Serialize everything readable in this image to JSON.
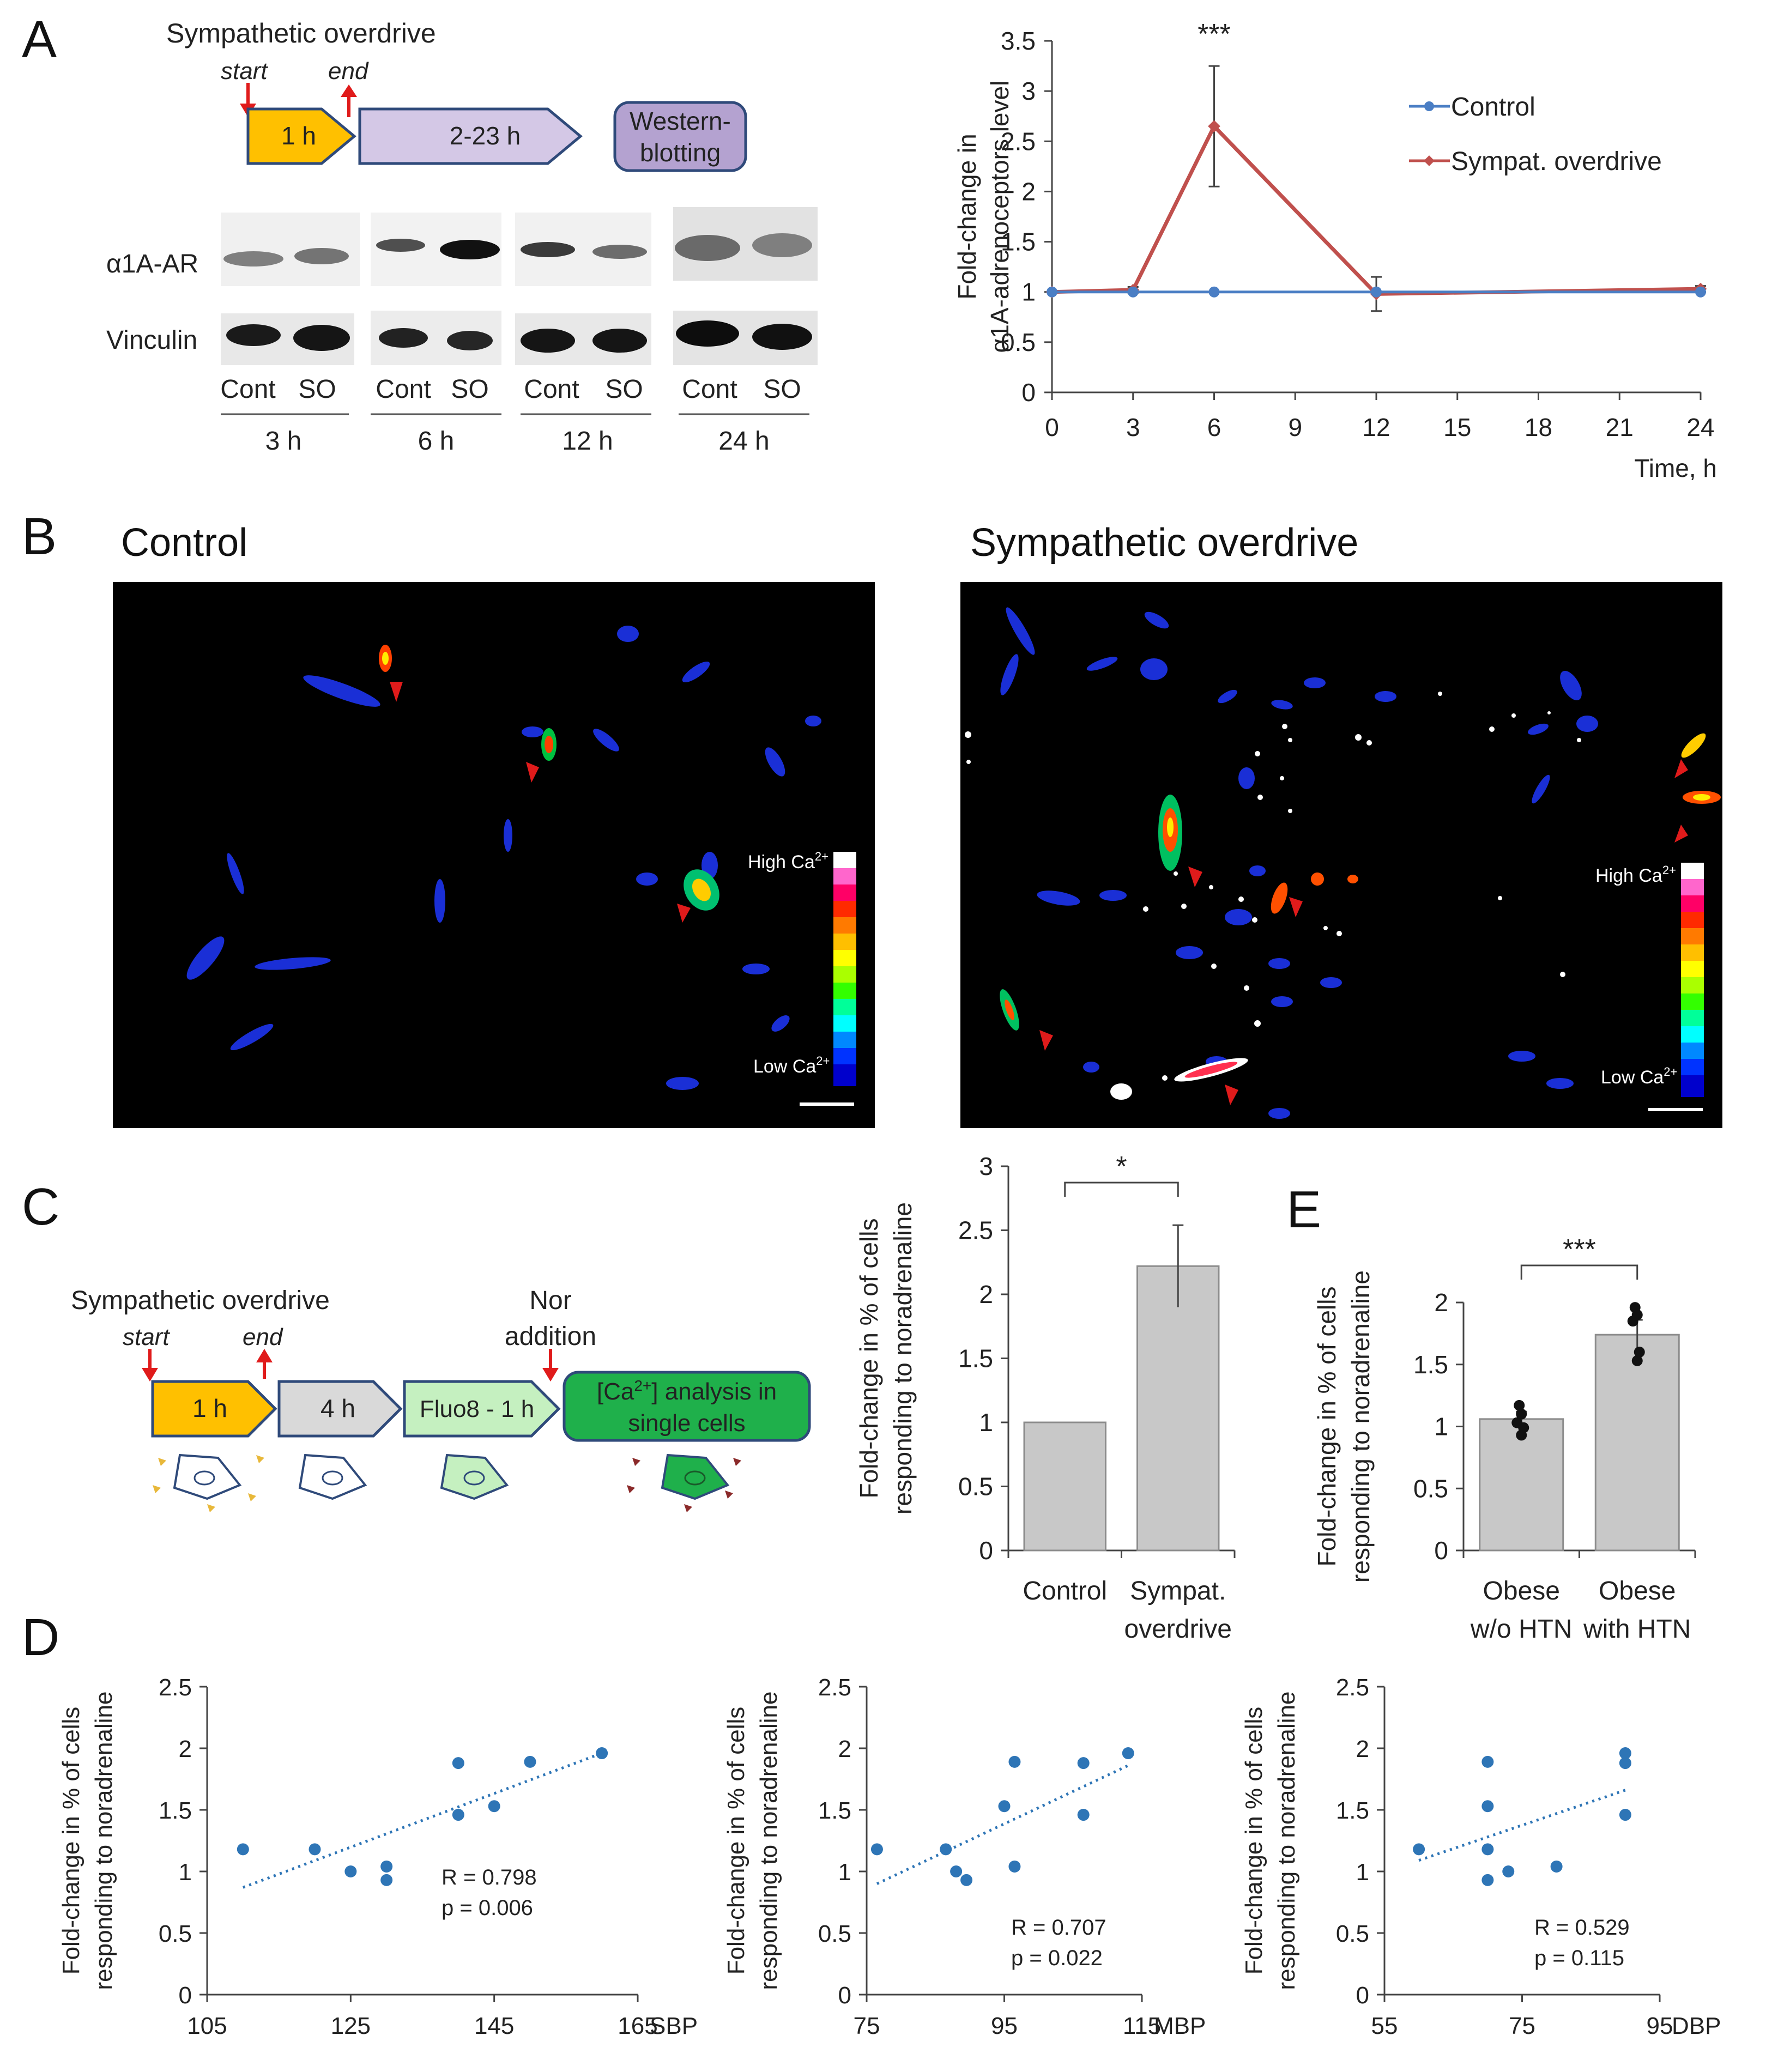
{
  "panel_labels": [
    "A",
    "B",
    "C",
    "D",
    "E"
  ],
  "colors": {
    "control": "#4a7ec4",
    "so": "#c0504d",
    "bar": "#c8c8c8",
    "bar_edge": "#8c8c8c",
    "dot_blue": "#2e75b6",
    "arrow_red": "#e01b1b",
    "step_orange": "#ffc000",
    "step_lavender": "#d4c8e6",
    "step_gray": "#d9d9d9",
    "step_lightgreen": "#c5f0c0",
    "step_green": "#1fb04b"
  },
  "panelA": {
    "protocol": {
      "title": "Sympathetic overdrive",
      "start": "start",
      "end": "end",
      "step1": "1 h",
      "step2": "2-23 h",
      "step3_line1": "Western-",
      "step3_line2": "blotting"
    },
    "blot": {
      "row1": "α1A-AR",
      "row2": "Vinculin",
      "lanes": [
        "Cont",
        "SO",
        "Cont",
        "SO",
        "Cont",
        "SO",
        "Cont",
        "SO"
      ],
      "times": [
        "3 h",
        "6 h",
        "12 h",
        "24 h"
      ]
    }
  },
  "panelB": {
    "left_title": "Control",
    "right_title": "Sympathetic overdrive",
    "scale_high": "High Ca",
    "scale_low": "Low Ca",
    "scale_sup": "2+"
  },
  "panelC": {
    "protocol": {
      "title": "Sympathetic overdrive",
      "start": "start",
      "end": "end",
      "nor_line1": "Nor",
      "nor_line2": "addition",
      "step1": "1 h",
      "step2": "4 h",
      "step3": "Fluo8 - 1 h",
      "step4_line1a": "[Ca",
      "step4_sup": "2+",
      "step4_line1b": "] analysis in",
      "step4_line2": "single cells"
    }
  },
  "chart_data": [
    {
      "id": "A-line",
      "type": "line",
      "ylabel": [
        "Fold-change in",
        "α1A-adrenoceptors level"
      ],
      "xlabel": "Time, h",
      "ylim": [
        0,
        3.5
      ],
      "yticks": [
        "0",
        "0.5",
        "1",
        "1.5",
        "2",
        "2.5",
        "3",
        "3.5"
      ],
      "xticks": [
        "0",
        "3",
        "6",
        "9",
        "12",
        "15",
        "18",
        "21",
        "24"
      ],
      "annotation": "***",
      "series": [
        {
          "name": "Control",
          "x": [
            0,
            3,
            6,
            12,
            24
          ],
          "y": [
            1,
            1,
            1,
            1,
            1
          ]
        },
        {
          "name": "Sympat. overdrive",
          "x": [
            0,
            3,
            6,
            12,
            24
          ],
          "y": [
            1,
            1.02,
            2.65,
            0.98,
            1.03
          ],
          "err": [
            0,
            0.03,
            0.6,
            0.17,
            0.03
          ]
        }
      ]
    },
    {
      "id": "C-bar",
      "type": "bar",
      "ylabel": [
        "Fold-change in % of cells",
        "responding to noradrenaline"
      ],
      "ylim": [
        0,
        3
      ],
      "yticks": [
        "0",
        "0.5",
        "1",
        "1.5",
        "2",
        "2.5",
        "3"
      ],
      "categories": [
        [
          "Control"
        ],
        [
          "Sympat.",
          "overdrive"
        ]
      ],
      "values": [
        1,
        2.22
      ],
      "errors": [
        0,
        0.32
      ],
      "annotation": "*"
    },
    {
      "id": "E-bar",
      "type": "bar",
      "ylabel": [
        "Fold-change in % of cells",
        "responding to noradrenaline"
      ],
      "ylim": [
        0,
        2
      ],
      "yticks": [
        "0",
        "0.5",
        "1",
        "1.5",
        "2"
      ],
      "categories": [
        [
          "Obese",
          "w/o HTN"
        ],
        [
          "Obese",
          "with HTN"
        ]
      ],
      "values": [
        1.06,
        1.74
      ],
      "errors": [
        0.06,
        0.12
      ],
      "points": [
        [
          0.93,
          0.99,
          1.03,
          1.1,
          1.17
        ],
        [
          1.53,
          1.6,
          1.85,
          1.9,
          1.96
        ]
      ],
      "annotation": "***"
    },
    {
      "id": "D-SBP",
      "type": "scatter",
      "ylabel": [
        "Fold-change in % of cells",
        "responding to noradrenaline"
      ],
      "xlabel": "SBP",
      "xlim": [
        105,
        165
      ],
      "ylim": [
        0,
        2.5
      ],
      "xticks": [
        "105",
        "125",
        "145",
        "165"
      ],
      "yticks": [
        "0",
        "0.5",
        "1",
        "1.5",
        "2",
        "2.5"
      ],
      "x": [
        110,
        120,
        125,
        130,
        130,
        140,
        140,
        145,
        150,
        160
      ],
      "y": [
        1.18,
        1.18,
        1.0,
        1.04,
        0.93,
        1.88,
        1.46,
        1.53,
        1.89,
        1.96
      ],
      "trend": [
        [
          110,
          0.87
        ],
        [
          160,
          1.96
        ]
      ],
      "stats": [
        "R = 0.798",
        "p = 0.006"
      ]
    },
    {
      "id": "D-MBP",
      "type": "scatter",
      "ylabel": [
        "Fold-change in % of cells",
        "responding to noradrenaline"
      ],
      "xlabel": "MBP",
      "xlim": [
        75,
        115
      ],
      "ylim": [
        0,
        2.5
      ],
      "xticks": [
        "75",
        "95",
        "115"
      ],
      "yticks": [
        "0",
        "0.5",
        "1",
        "1.5",
        "2",
        "2.5"
      ],
      "x": [
        76.5,
        86.5,
        88,
        89.5,
        95,
        96.5,
        96.5,
        106.5,
        106.5,
        113
      ],
      "y": [
        1.18,
        1.18,
        1.0,
        0.93,
        1.53,
        1.89,
        1.04,
        1.88,
        1.46,
        1.96
      ],
      "trend": [
        [
          76.5,
          0.9
        ],
        [
          113,
          1.86
        ]
      ],
      "stats": [
        "R = 0.707",
        "p = 0.022"
      ]
    },
    {
      "id": "D-DBP",
      "type": "scatter",
      "ylabel": [
        "Fold-change in % of cells",
        "responding to noradrenaline"
      ],
      "xlabel": "DBP",
      "xlim": [
        55,
        95
      ],
      "ylim": [
        0,
        2.5
      ],
      "xticks": [
        "55",
        "75",
        "95"
      ],
      "yticks": [
        "0",
        "0.5",
        "1",
        "1.5",
        "2",
        "2.5"
      ],
      "x": [
        60,
        70,
        70,
        70,
        70,
        73,
        80,
        90,
        90,
        90
      ],
      "y": [
        1.18,
        1.89,
        1.53,
        1.18,
        0.93,
        1.0,
        1.04,
        1.96,
        1.88,
        1.46
      ],
      "trend": [
        [
          60,
          1.09
        ],
        [
          90,
          1.66
        ]
      ],
      "stats": [
        "R = 0.529",
        "p = 0.115"
      ]
    }
  ]
}
